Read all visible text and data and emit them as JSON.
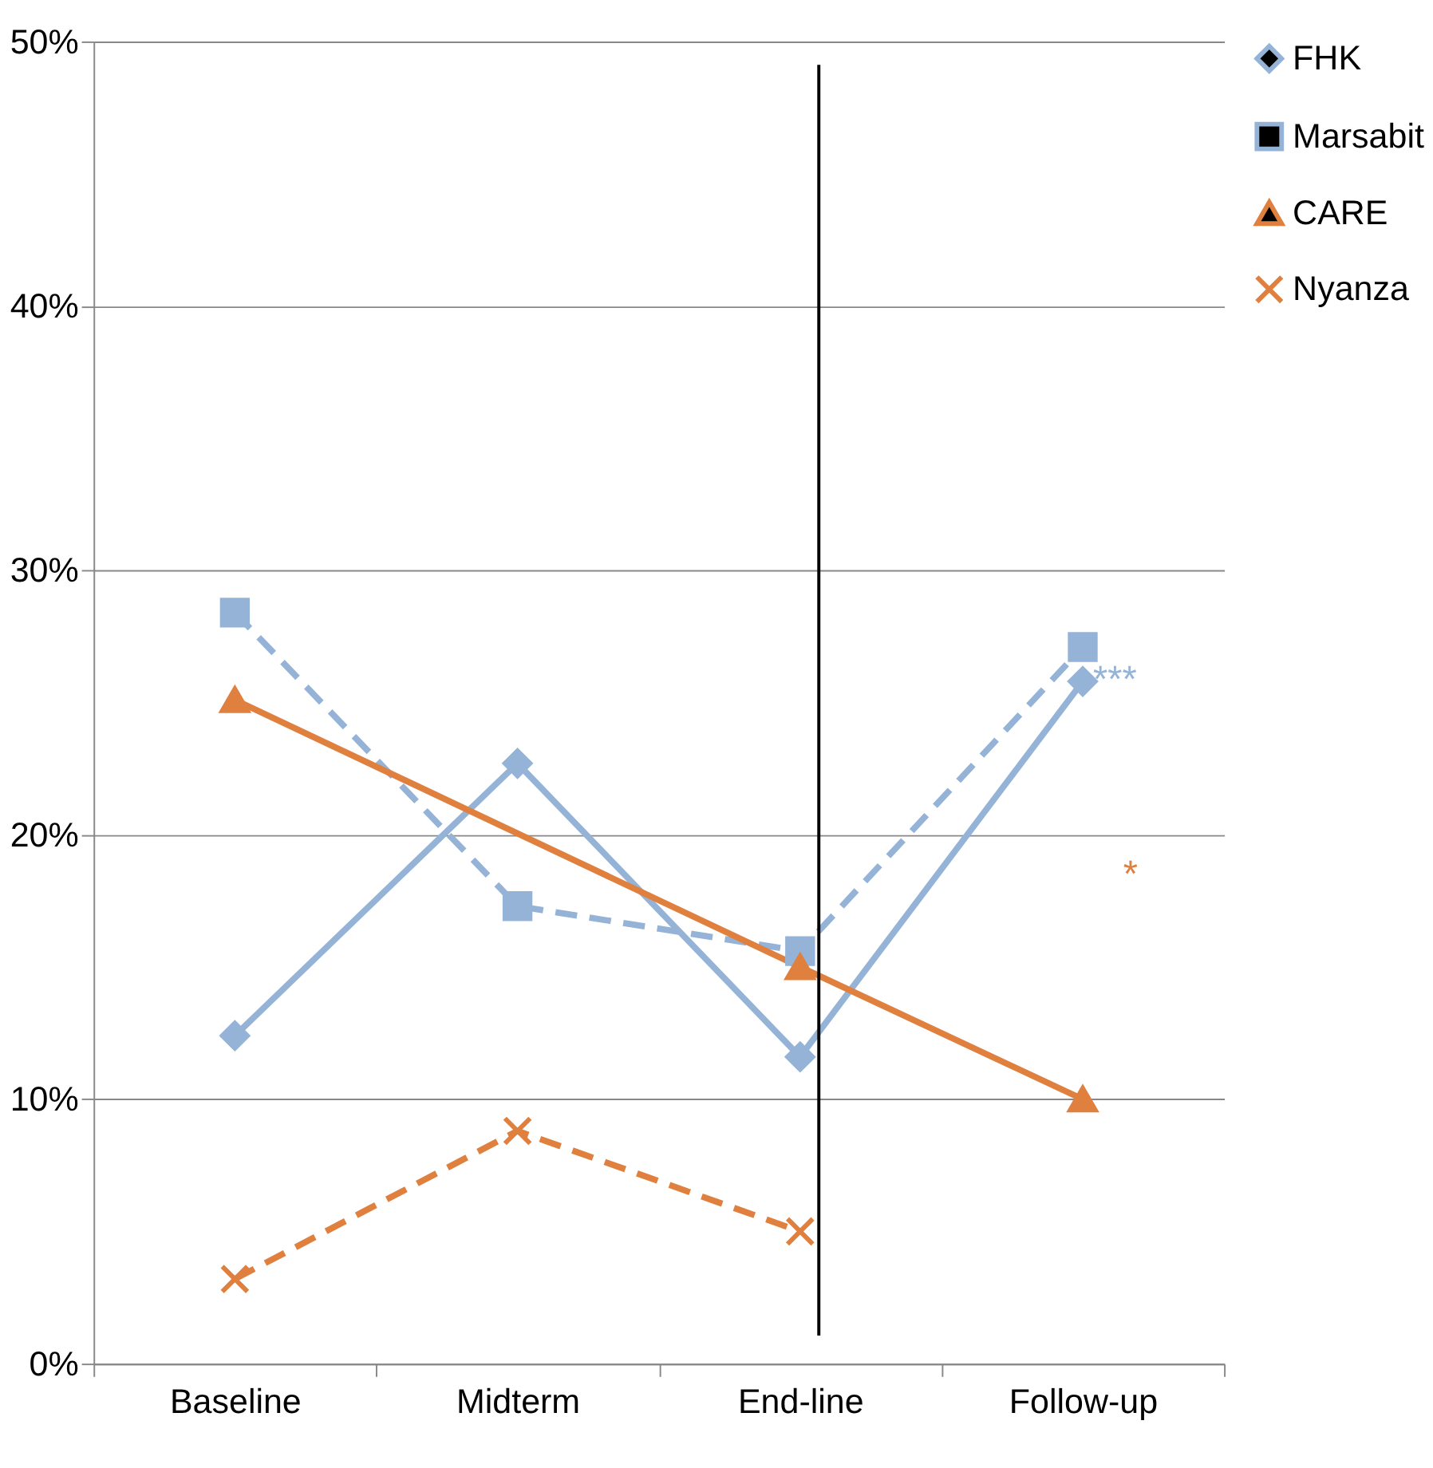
{
  "chart_data": {
    "type": "line",
    "categories": [
      "Baseline",
      "Midterm",
      "End-line",
      "Follow-up"
    ],
    "series": [
      {
        "name": "FHK",
        "color": "#95b3d7",
        "values": [
          12.4,
          22.7,
          11.6,
          25.8
        ],
        "marker": "diamond",
        "line_style": "solid"
      },
      {
        "name": "Marsabit",
        "color": "#95b3d7",
        "values": [
          28.4,
          17.3,
          15.6,
          27.1
        ],
        "marker": "square",
        "line_style": "dashed"
      },
      {
        "name": "CARE",
        "color": "#e0803f",
        "x": [
          "Baseline",
          "End-line",
          "Follow-up"
        ],
        "values": [
          25.1,
          15.0,
          10.0
        ],
        "marker": "triangle",
        "line_style": "solid"
      },
      {
        "name": "Nyanza",
        "color": "#e0803f",
        "values": [
          3.2,
          8.8,
          5.0,
          null
        ],
        "marker": "cross",
        "line_style": "dashed"
      }
    ],
    "ylim": [
      0,
      50
    ],
    "yticks": [
      {
        "value": 0,
        "label": "0%"
      },
      {
        "value": 10,
        "label": "10%"
      },
      {
        "value": 20,
        "label": "20%"
      },
      {
        "value": 30,
        "label": "30%"
      },
      {
        "value": 40,
        "label": "40%"
      },
      {
        "value": 50,
        "label": "50%"
      }
    ],
    "grid": "y",
    "legend": "right",
    "ref_lines": [
      {
        "axis": "x",
        "value": "End-line",
        "label": null,
        "color": "#000000"
      }
    ],
    "annotations": [
      "***",
      "*"
    ]
  }
}
